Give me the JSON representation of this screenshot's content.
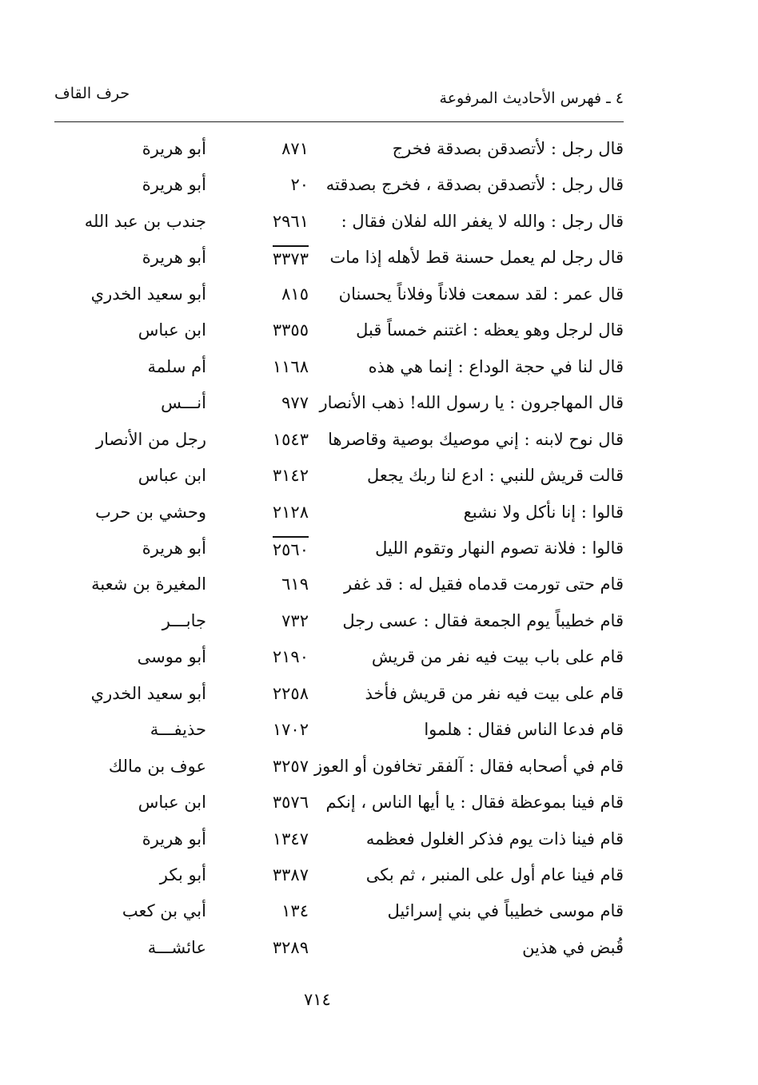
{
  "header": {
    "title": "٤ ـ فهرس الأحاديث المرفوعة",
    "section": "حرف القاف"
  },
  "table": {
    "rows": [
      {
        "text": "قال رجل : لأتصدقن بصدقة فخرج",
        "number": "٨٧١",
        "narrator": "أبو هريرة"
      },
      {
        "text": "قال رجل : لأتصدقن بصدقة ، فخرج بصدقته",
        "number": "٢٠",
        "narrator": "أبو هريرة"
      },
      {
        "text": "قال رجل : والله لا يغفر الله لفلان فقال :",
        "number": "٢٩٦١",
        "narrator": "جندب بن عبد الله"
      },
      {
        "text": "قال رجل لم يعمل حسنة قط لأهله إذا مات",
        "number": "٣٣٧٣",
        "narrator": "أبو هريرة",
        "overlined": true
      },
      {
        "text": "قال عمر : لقد سمعت فلاناً وفلاناً يحسنان",
        "number": "٨١٥",
        "narrator": "أبو سعيد الخدري"
      },
      {
        "text": "قال لرجل وهو يعظه : اغتنم خمساً قبل",
        "number": "٣٣٥٥",
        "narrator": "ابن عباس"
      },
      {
        "text": "قال لنا في حجة الوداع : إنما هي هذه",
        "number": "١١٦٨",
        "narrator": "أم سلمة"
      },
      {
        "text": "قال المهاجرون : يا رسول الله! ذهب الأنصار",
        "number": "٩٧٧",
        "narrator": "أنـــس"
      },
      {
        "text": "قال نوح لابنه : إني موصيك بوصية وقاصرها",
        "number": "١٥٤٣",
        "narrator": "رجل من الأنصار"
      },
      {
        "text": "قالت قريش للنبي : ادع لنا ربك يجعل",
        "number": "٣١٤٢",
        "narrator": "ابن عباس"
      },
      {
        "text": "قالوا : إنا نأكل ولا نشبع",
        "number": "٢١٢٨",
        "narrator": "وحشي بن حرب"
      },
      {
        "text": "قالوا : فلانة تصوم النهار وتقوم الليل",
        "number": "٢٥٦٠",
        "narrator": "أبو هريرة",
        "overlined": true
      },
      {
        "text": "قام حتى تورمت قدماه فقيل له : قد غفر",
        "number": "٦١٩",
        "narrator": "المغيرة بن شعبة"
      },
      {
        "text": "قام خطيباً يوم الجمعة فقال : عسى رجل",
        "number": "٧٣٢",
        "narrator": "جابـــر"
      },
      {
        "text": "قام على باب بيت فيه نفر من قريش",
        "number": "٢١٩٠",
        "narrator": "أبو موسى"
      },
      {
        "text": "قام على بيت فيه نفر من قريش فأخذ",
        "number": "٢٢٥٨",
        "narrator": "أبو سعيد الخدري"
      },
      {
        "text": "قام فدعا الناس فقال : هلموا",
        "number": "١٧٠٢",
        "narrator": "حذيفـــة"
      },
      {
        "text": "قام في أصحابه فقال : آلفقر تخافون أو العوز",
        "number": "٣٢٥٧",
        "narrator": "عوف بن مالك"
      },
      {
        "text": "قام فينا بموعظة فقال : يا أيها الناس ، إنكم",
        "number": "٣٥٧٦",
        "narrator": "ابن عباس"
      },
      {
        "text": "قام فينا ذات يوم فذكر الغلول فعظمه",
        "number": "١٣٤٧",
        "narrator": "أبو هريرة"
      },
      {
        "text": "قام فينا عام أول على المنبر ، ثم بكى",
        "number": "٣٣٨٧",
        "narrator": "أبو بكر"
      },
      {
        "text": "قام موسى خطيباً في بني إسرائيل",
        "number": "١٣٤",
        "narrator": "أبي بن كعب"
      },
      {
        "text": "قُبض في هذين",
        "number": "٣٢٨٩",
        "narrator": "عائشـــة"
      }
    ]
  },
  "footer": {
    "page_number": "٧١٤"
  }
}
